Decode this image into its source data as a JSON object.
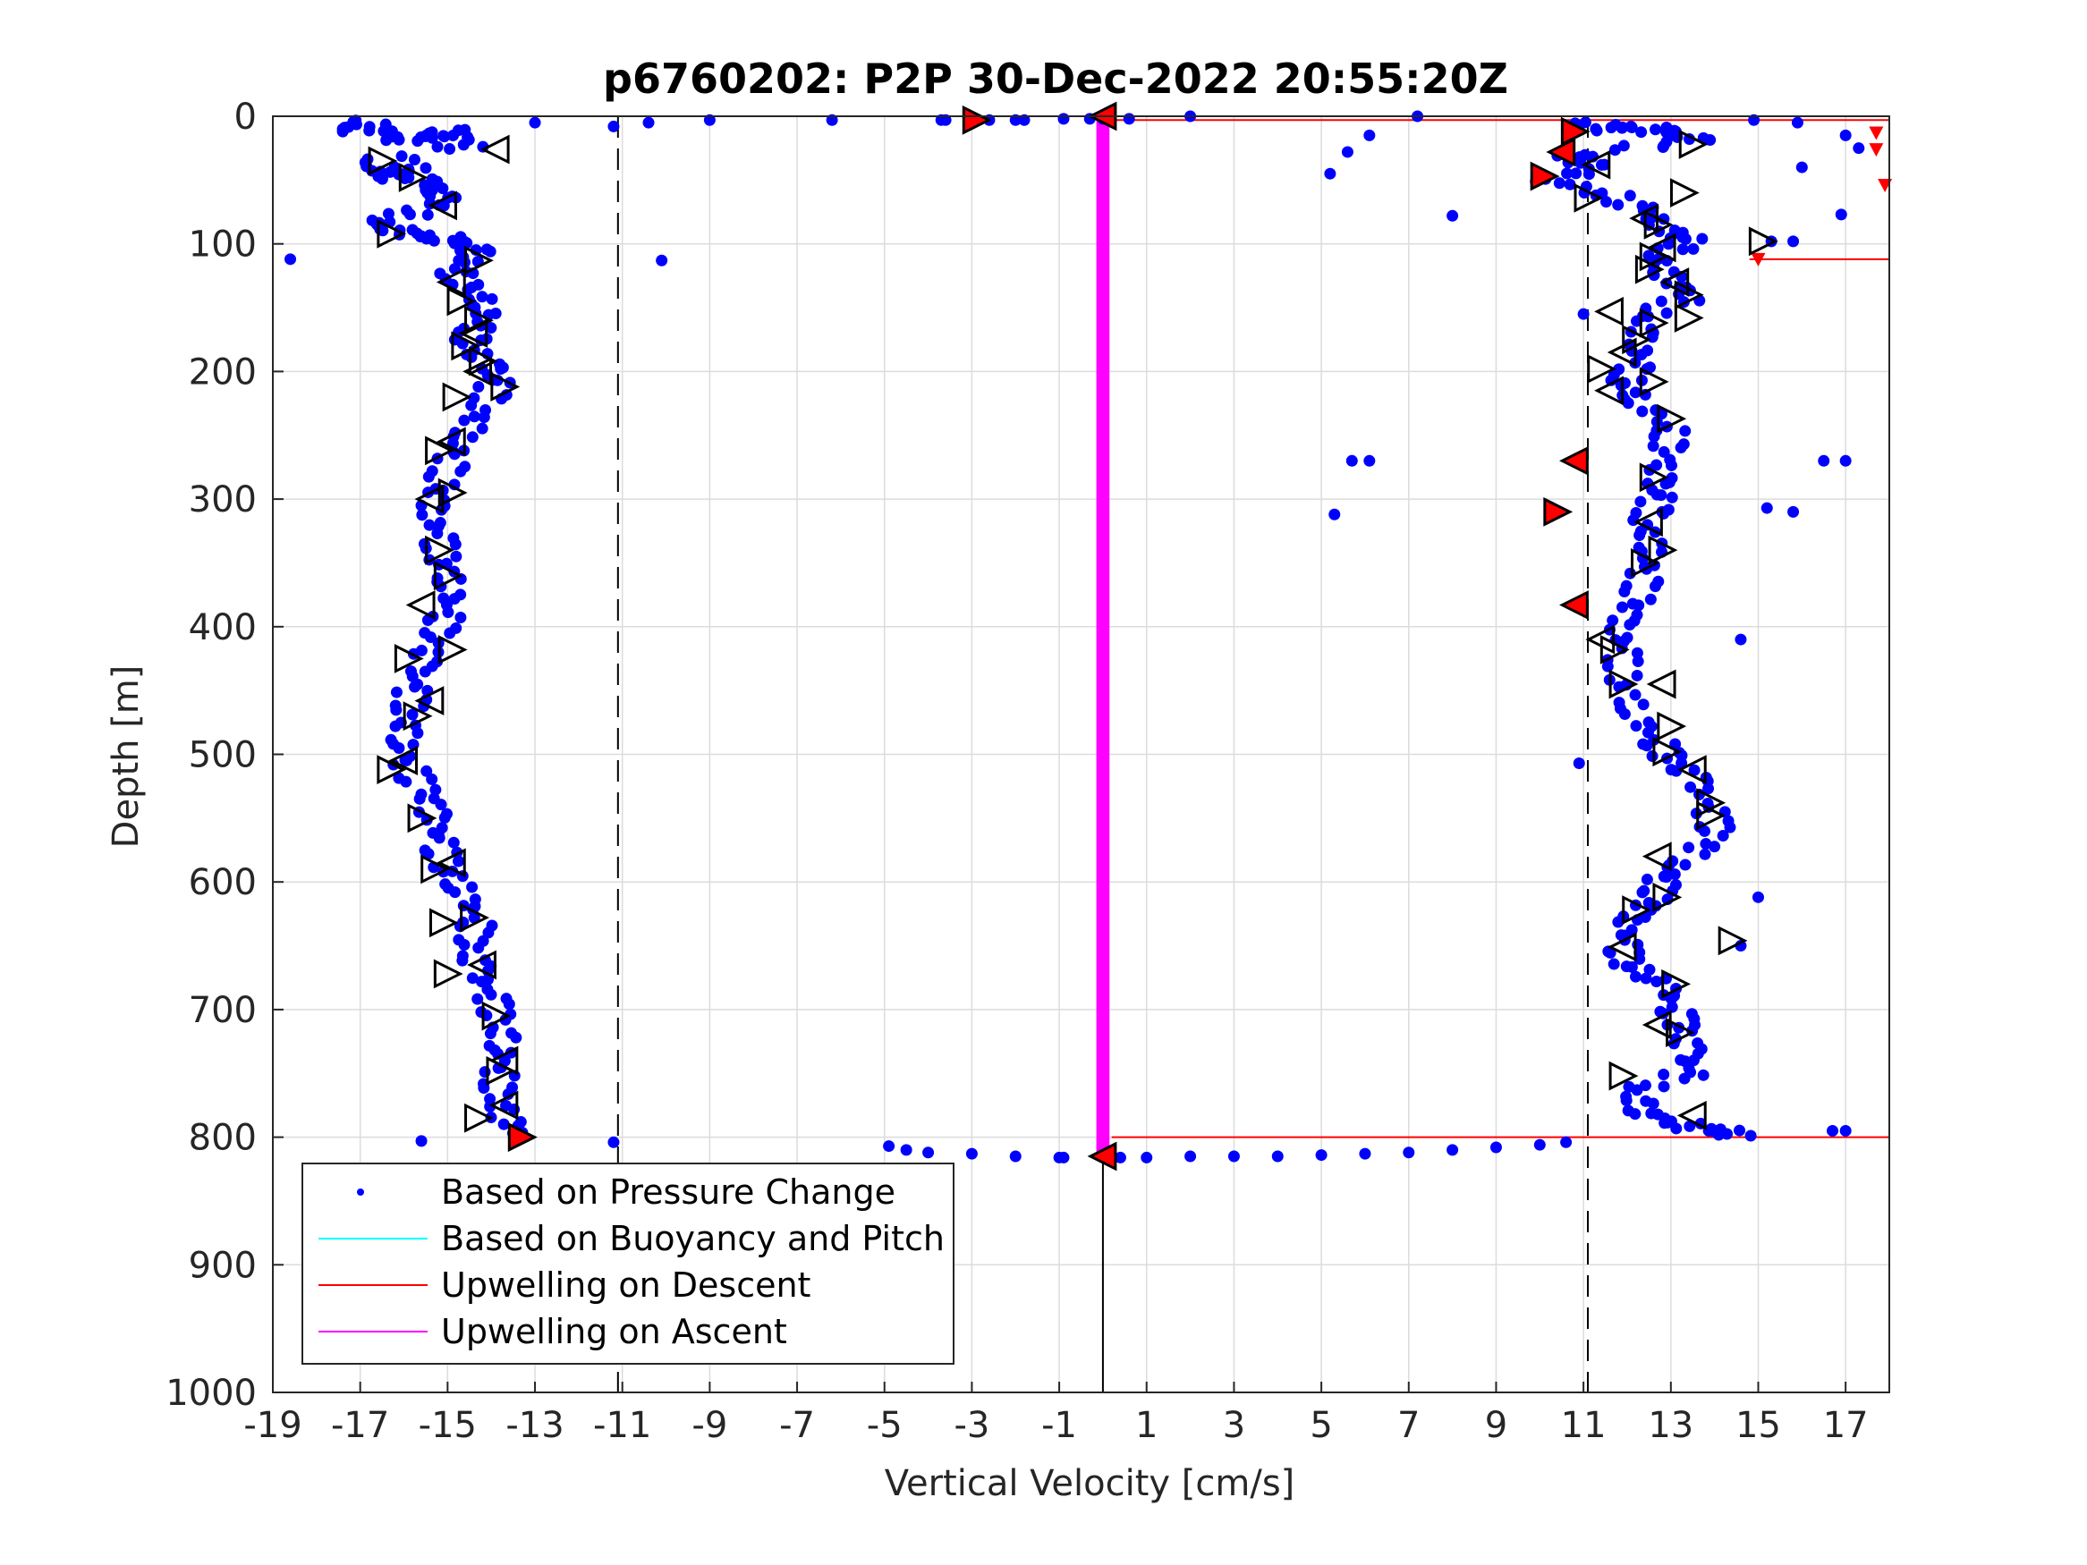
{
  "chart_data": {
    "type": "scatter",
    "title": "p6760202: P2P 30-Dec-2022 20:55:20Z",
    "xlabel": "Vertical Velocity [cm/s]",
    "ylabel": "Depth [m]",
    "xlim": [
      -19,
      18
    ],
    "ylim": [
      0,
      1000
    ],
    "y_reversed": true,
    "grid": true,
    "xticks": [
      "-19",
      "-17",
      "-15",
      "-13",
      "-11",
      "-9",
      "-7",
      "-5",
      "-3",
      "-1",
      "1",
      "3",
      "5",
      "7",
      "9",
      "11",
      "13",
      "15",
      "17"
    ],
    "yticks": [
      "0",
      "100",
      "200",
      "300",
      "400",
      "500",
      "600",
      "700",
      "800",
      "900",
      "1000"
    ],
    "reference_lines_dashed_x": [
      -11.1,
      11.1
    ],
    "reference_line_solid_x": 0,
    "legend_position": "bottom-left",
    "legend": [
      {
        "label": "Based on Pressure Change",
        "color": "#0000ff",
        "style": "dot"
      },
      {
        "label": "Based on Buoyancy and Pitch",
        "color": "#00ffff",
        "style": "line"
      },
      {
        "label": "Upwelling on Descent",
        "color": "#ff0000",
        "style": "line"
      },
      {
        "label": "Upwelling on Ascent",
        "color": "#ff00ff",
        "style": "line"
      }
    ],
    "series": [
      {
        "name": "Based on Pressure Change",
        "color": "#0000ff",
        "descent_profile": [
          [
            -17.4,
            10
          ],
          [
            -16.8,
            5
          ],
          [
            -16.1,
            18
          ],
          [
            -15.6,
            16
          ],
          [
            -14.9,
            12
          ],
          [
            -14.5,
            22
          ],
          [
            -16.9,
            38
          ],
          [
            -16.2,
            48
          ],
          [
            -15.9,
            40
          ],
          [
            -15.5,
            55
          ],
          [
            -15.1,
            62
          ],
          [
            -15.4,
            72
          ],
          [
            -16.6,
            82
          ],
          [
            -16.2,
            90
          ],
          [
            -15.3,
            95
          ],
          [
            -14.8,
            98
          ],
          [
            -14.3,
            108
          ],
          [
            -14.9,
            120
          ],
          [
            -14.5,
            135
          ],
          [
            -14.1,
            150
          ],
          [
            -14.3,
            165
          ],
          [
            -14.6,
            180
          ],
          [
            -14.0,
            195
          ],
          [
            -13.9,
            210
          ],
          [
            -14.2,
            230
          ],
          [
            -14.6,
            250
          ],
          [
            -14.9,
            270
          ],
          [
            -15.2,
            290
          ],
          [
            -15.4,
            310
          ],
          [
            -15.2,
            330
          ],
          [
            -15.1,
            350
          ],
          [
            -14.9,
            370
          ],
          [
            -15.0,
            390
          ],
          [
            -15.3,
            410
          ],
          [
            -15.6,
            430
          ],
          [
            -15.8,
            450
          ],
          [
            -15.9,
            470
          ],
          [
            -16.0,
            490
          ],
          [
            -15.9,
            510
          ],
          [
            -15.5,
            530
          ],
          [
            -15.3,
            550
          ],
          [
            -15.2,
            570
          ],
          [
            -15.0,
            590
          ],
          [
            -14.6,
            610
          ],
          [
            -14.3,
            630
          ],
          [
            -14.5,
            650
          ],
          [
            -14.3,
            670
          ],
          [
            -14.0,
            690
          ],
          [
            -13.8,
            710
          ],
          [
            -13.7,
            730
          ],
          [
            -13.8,
            750
          ],
          [
            -13.9,
            770
          ],
          [
            -13.6,
            790
          ],
          [
            -13.3,
            800
          ]
        ],
        "descent_outliers": [
          [
            -18.6,
            112
          ],
          [
            -13.0,
            5
          ],
          [
            -11.2,
            8
          ],
          [
            -10.4,
            5
          ],
          [
            -9.0,
            3
          ],
          [
            -6.2,
            3
          ],
          [
            -3.6,
            3
          ],
          [
            -2.0,
            3
          ],
          [
            -10.1,
            113
          ],
          [
            -11.2,
            804
          ],
          [
            -15.6,
            803
          ],
          [
            -17.4,
            10
          ]
        ],
        "ascent_profile": [
          [
            10.8,
            5
          ],
          [
            11.2,
            10
          ],
          [
            12.2,
            8
          ],
          [
            12.9,
            12
          ],
          [
            13.6,
            20
          ],
          [
            10.6,
            30
          ],
          [
            11.4,
            40
          ],
          [
            10.2,
            50
          ],
          [
            11.6,
            62
          ],
          [
            12.4,
            75
          ],
          [
            12.9,
            90
          ],
          [
            13.4,
            98
          ],
          [
            12.7,
            110
          ],
          [
            12.9,
            125
          ],
          [
            13.5,
            140
          ],
          [
            12.4,
            155
          ],
          [
            12.3,
            175
          ],
          [
            12.2,
            195
          ],
          [
            11.9,
            210
          ],
          [
            12.3,
            225
          ],
          [
            13.0,
            245
          ],
          [
            12.9,
            265
          ],
          [
            12.7,
            285
          ],
          [
            12.7,
            300
          ],
          [
            12.4,
            320
          ],
          [
            12.6,
            340
          ],
          [
            12.4,
            360
          ],
          [
            12.2,
            380
          ],
          [
            11.8,
            400
          ],
          [
            11.9,
            420
          ],
          [
            11.9,
            445
          ],
          [
            12.2,
            470
          ],
          [
            12.7,
            490
          ],
          [
            13.0,
            505
          ],
          [
            13.6,
            520
          ],
          [
            13.9,
            545
          ],
          [
            14.1,
            565
          ],
          [
            13.2,
            585
          ],
          [
            12.8,
            600
          ],
          [
            12.6,
            615
          ],
          [
            12.0,
            630
          ],
          [
            11.9,
            650
          ],
          [
            12.0,
            665
          ],
          [
            12.9,
            680
          ],
          [
            13.1,
            700
          ],
          [
            13.3,
            715
          ],
          [
            13.4,
            735
          ],
          [
            13.4,
            750
          ],
          [
            12.1,
            765
          ],
          [
            12.4,
            780
          ],
          [
            13.2,
            790
          ],
          [
            14.0,
            795
          ],
          [
            14.6,
            798
          ]
        ],
        "ascent_outliers": [
          [
            14.9,
            3
          ],
          [
            12.9,
            20
          ],
          [
            6.1,
            15
          ],
          [
            5.2,
            45
          ],
          [
            5.6,
            28
          ],
          [
            8.0,
            78
          ],
          [
            15.8,
            98
          ],
          [
            15.3,
            98
          ],
          [
            11.0,
            155
          ],
          [
            12.8,
            310
          ],
          [
            5.7,
            270
          ],
          [
            6.1,
            270
          ],
          [
            5.3,
            312
          ],
          [
            15.2,
            307
          ],
          [
            15.8,
            310
          ],
          [
            16.5,
            270
          ],
          [
            17.0,
            270
          ],
          [
            14.6,
            410
          ],
          [
            10.9,
            507
          ],
          [
            15.0,
            612
          ],
          [
            14.6,
            650
          ],
          [
            16.7,
            795
          ],
          [
            17.0,
            795
          ],
          [
            17.0,
            15
          ],
          [
            17.3,
            25
          ],
          [
            16.9,
            77
          ],
          [
            16.0,
            40
          ],
          [
            15.9,
            5
          ],
          [
            7.2,
            0
          ],
          [
            2.0,
            0
          ]
        ],
        "bottom_transition": [
          [
            -4.9,
            807
          ],
          [
            -4.5,
            810
          ],
          [
            -4.0,
            812
          ],
          [
            -3.0,
            813
          ],
          [
            -2.0,
            815
          ],
          [
            -1.0,
            816
          ],
          [
            0.4,
            816
          ],
          [
            1.0,
            816
          ],
          [
            2.0,
            815
          ],
          [
            3.0,
            815
          ],
          [
            4.0,
            815
          ],
          [
            5.0,
            814
          ],
          [
            6.0,
            813
          ],
          [
            7.0,
            812
          ],
          [
            8.0,
            810
          ],
          [
            9.0,
            808
          ],
          [
            10.0,
            806
          ],
          [
            10.6,
            804
          ],
          [
            -0.9,
            816
          ]
        ],
        "surface_transition": [
          [
            -3.7,
            3
          ],
          [
            -2.6,
            3
          ],
          [
            -1.8,
            3
          ],
          [
            -0.9,
            2
          ],
          [
            -0.3,
            2
          ],
          [
            0.0,
            2
          ],
          [
            0.6,
            2
          ]
        ]
      }
    ],
    "markers_open": [
      [
        -13.9,
        26
      ],
      [
        -16.5,
        35
      ],
      [
        -15.8,
        48
      ],
      [
        -15.1,
        70
      ],
      [
        -16.3,
        92
      ],
      [
        -14.3,
        113
      ],
      [
        -14.9,
        130
      ],
      [
        -14.7,
        145
      ],
      [
        -14.3,
        160
      ],
      [
        -14.4,
        170
      ],
      [
        -14.6,
        180
      ],
      [
        -14.2,
        192
      ],
      [
        -14.3,
        200
      ],
      [
        -13.7,
        212
      ],
      [
        -14.8,
        220
      ],
      [
        -14.9,
        255
      ],
      [
        -15.2,
        262
      ],
      [
        -14.9,
        295
      ],
      [
        -15.4,
        300
      ],
      [
        -15.2,
        340
      ],
      [
        -15.0,
        360
      ],
      [
        -15.6,
        383
      ],
      [
        -14.9,
        418
      ],
      [
        -15.9,
        425
      ],
      [
        -15.4,
        458
      ],
      [
        -15.7,
        470
      ],
      [
        -16.3,
        512
      ],
      [
        -16.0,
        505
      ],
      [
        -15.6,
        550
      ],
      [
        -15.3,
        590
      ],
      [
        -14.9,
        585
      ],
      [
        -15.1,
        632
      ],
      [
        -14.4,
        628
      ],
      [
        -14.2,
        665
      ],
      [
        -15.0,
        672
      ],
      [
        -13.9,
        705
      ],
      [
        -13.7,
        740
      ],
      [
        -13.8,
        748
      ],
      [
        -14.3,
        785
      ],
      [
        -13.7,
        775
      ],
      [
        -13.3,
        800
      ],
      [
        13.5,
        22
      ],
      [
        11.3,
        38
      ],
      [
        11.1,
        64
      ],
      [
        13.3,
        60
      ],
      [
        12.4,
        80
      ],
      [
        12.7,
        85
      ],
      [
        15.1,
        98
      ],
      [
        12.8,
        103
      ],
      [
        12.6,
        110
      ],
      [
        12.5,
        120
      ],
      [
        13.1,
        130
      ],
      [
        13.4,
        140
      ],
      [
        13.4,
        158
      ],
      [
        11.6,
        153
      ],
      [
        12.6,
        162
      ],
      [
        12.2,
        175
      ],
      [
        11.9,
        185
      ],
      [
        11.4,
        198
      ],
      [
        12.6,
        208
      ],
      [
        11.6,
        215
      ],
      [
        13.0,
        237
      ],
      [
        12.6,
        283
      ],
      [
        12.5,
        318
      ],
      [
        12.8,
        340
      ],
      [
        12.4,
        350
      ],
      [
        11.4,
        410
      ],
      [
        11.7,
        418
      ],
      [
        11.9,
        445
      ],
      [
        12.8,
        445
      ],
      [
        13.0,
        478
      ],
      [
        12.9,
        498
      ],
      [
        13.5,
        512
      ],
      [
        13.9,
        538
      ],
      [
        13.9,
        548
      ],
      [
        12.7,
        580
      ],
      [
        12.9,
        612
      ],
      [
        12.2,
        622
      ],
      [
        11.9,
        651
      ],
      [
        14.4,
        646
      ],
      [
        13.1,
        680
      ],
      [
        12.7,
        712
      ],
      [
        13.2,
        718
      ],
      [
        11.9,
        752
      ],
      [
        13.5,
        783
      ]
    ],
    "markers_red": [
      [
        -2.9,
        3
      ],
      [
        0.0,
        0
      ],
      [
        10.8,
        12
      ],
      [
        10.5,
        28
      ],
      [
        10.1,
        47
      ],
      [
        10.8,
        270
      ],
      [
        10.4,
        310
      ],
      [
        10.8,
        383
      ],
      [
        -13.3,
        800
      ],
      [
        0.0,
        815
      ]
    ]
  }
}
